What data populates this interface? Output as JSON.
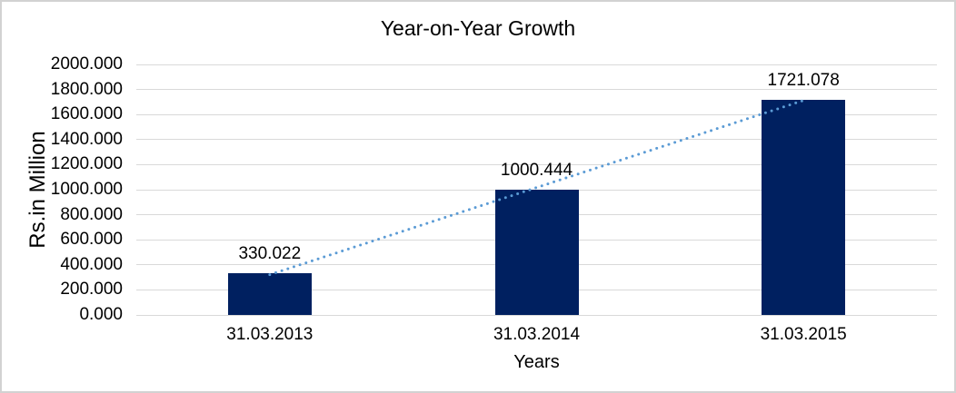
{
  "frame": {
    "background": "#ffffff",
    "border_color": "#d2d2d2"
  },
  "chart_data": {
    "type": "bar",
    "title": "Year-on-Year Growth",
    "categories": [
      "31.03.2013",
      "31.03.2014",
      "31.03.2015"
    ],
    "values": [
      330.022,
      1000.444,
      1721.078
    ],
    "data_labels": [
      "330.022",
      "1000.444",
      "1721.078"
    ],
    "xlabel": "Years",
    "ylabel": "Rs.in Million",
    "ylim": [
      0,
      2000
    ],
    "ytick_step": 200,
    "ytick_labels": [
      "0.000",
      "200.000",
      "400.000",
      "600.000",
      "800.000",
      "1000.000",
      "1200.000",
      "1400.000",
      "1600.000",
      "1800.000",
      "2000.000"
    ],
    "grid": "horizontal",
    "legend": "none",
    "trendline": {
      "type": "linear",
      "style": "dotted"
    },
    "colors": {
      "bar": "#002060",
      "trendline": "#5b9bd5",
      "gridline": "#d9d9d9",
      "text": "#000000"
    }
  }
}
